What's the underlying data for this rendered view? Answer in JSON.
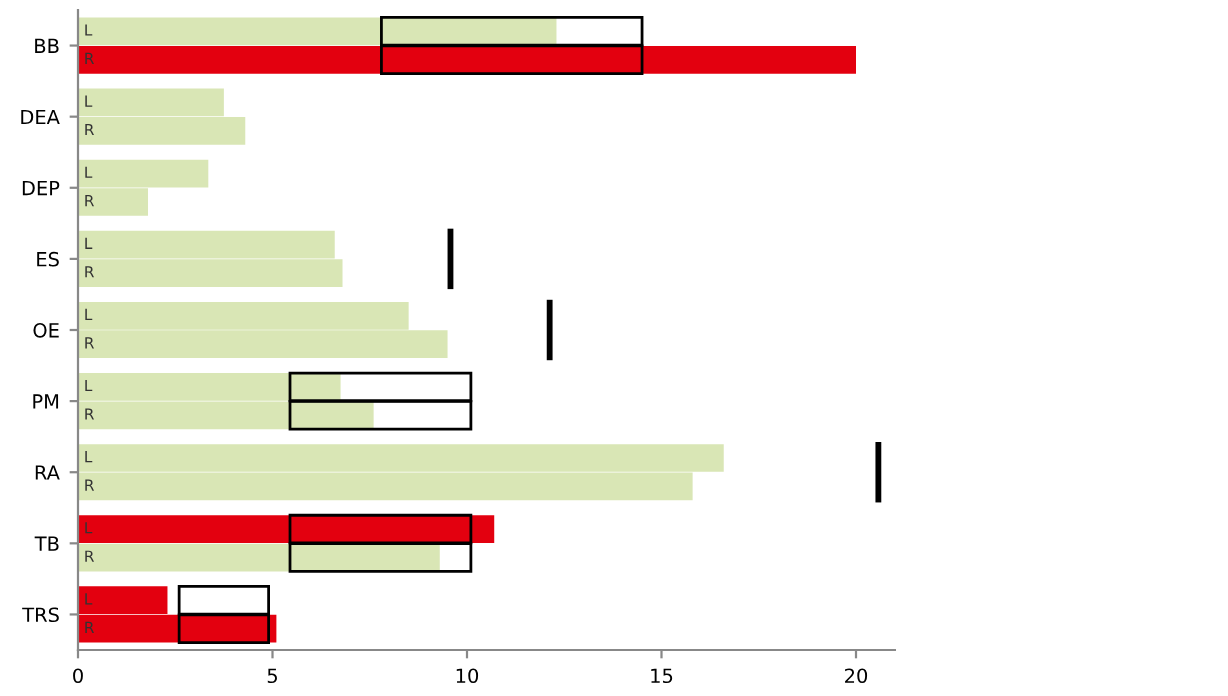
{
  "chart_data": {
    "type": "bar",
    "orientation": "horizontal",
    "categories": [
      "BB",
      "DEA",
      "DEP",
      "ES",
      "OE",
      "PM",
      "RA",
      "TB",
      "TRS"
    ],
    "series": [
      {
        "name": "L",
        "colors": [
          "#d9e6b5",
          "#d9e6b5",
          "#d9e6b5",
          "#d9e6b5",
          "#d9e6b5",
          "#d9e6b5",
          "#d9e6b5",
          "#e3000f",
          "#e3000f"
        ],
        "values": [
          12.3,
          3.75,
          3.35,
          6.6,
          8.5,
          6.75,
          16.6,
          10.7,
          2.3
        ]
      },
      {
        "name": "R",
        "colors": [
          "#e3000f",
          "#d9e6b5",
          "#d9e6b5",
          "#d9e6b5",
          "#d9e6b5",
          "#d9e6b5",
          "#d9e6b5",
          "#d9e6b5",
          "#e3000f"
        ],
        "values": [
          20.0,
          4.3,
          1.8,
          6.8,
          9.5,
          7.6,
          15.8,
          9.3,
          5.1
        ]
      },
      {
        "type": "bar",
        "color": "#000000",
        "base": [
          7.8,
          null,
          null,
          null,
          null,
          5.45,
          null,
          5.45,
          2.6
        ],
        "values": [
          6.7,
          null,
          null,
          null,
          null,
          4.65,
          null,
          4.65,
          2.3
        ]
      },
      {
        "type": "bar",
        "color": "#000000",
        "base": [
          7.8,
          null,
          null,
          null,
          null,
          5.45,
          null,
          5.45,
          2.6
        ],
        "values": [
          6.7,
          null,
          null,
          null,
          null,
          4.65,
          null,
          4.65,
          2.3
        ]
      },
      {
        "type": "bar",
        "color": "#000000",
        "base": [
          null,
          null,
          null,
          9.5,
          12.05,
          null,
          20.5,
          null,
          null
        ],
        "values": [
          null,
          null,
          null,
          0.15,
          0.15,
          null,
          0.15,
          null,
          null
        ]
      }
    ],
    "xlim": [
      0,
      21
    ],
    "xticks": [
      0,
      5,
      10,
      15,
      20
    ],
    "grid": false,
    "legend": false
  }
}
